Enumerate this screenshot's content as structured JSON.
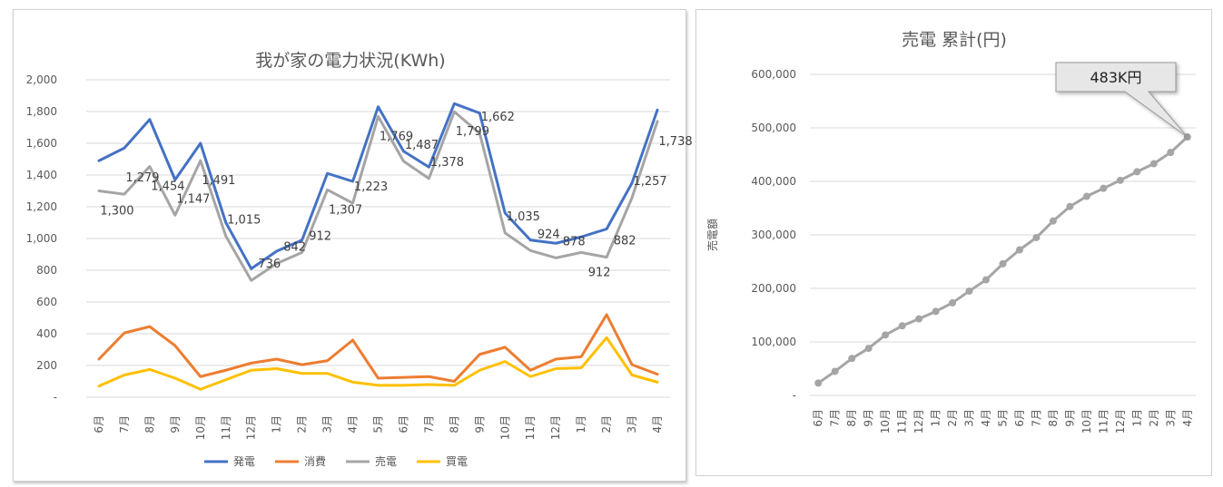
{
  "chart_data": [
    {
      "type": "line",
      "title": "我が家の電力状況(KWh)",
      "categories": [
        "6月",
        "7月",
        "8月",
        "9月",
        "10月",
        "11月",
        "12月",
        "1月",
        "2月",
        "3月",
        "4月",
        "5月",
        "6月",
        "7月",
        "8月",
        "9月",
        "10月",
        "11月",
        "12月",
        "1月",
        "2月",
        "3月",
        "4月"
      ],
      "ylim": [
        0,
        2000
      ],
      "yticks": [
        "-",
        "200",
        "400",
        "600",
        "800",
        "1,000",
        "1,200",
        "1,400",
        "1,600",
        "1,800",
        "2,000"
      ],
      "grid": true,
      "legend_position": "bottom",
      "series": [
        {
          "name": "発電",
          "color": "#4472C4",
          "values": [
            1490,
            1570,
            1750,
            1370,
            1600,
            1100,
            810,
            920,
            990,
            1410,
            1360,
            1830,
            1550,
            1450,
            1850,
            1790,
            1160,
            990,
            970,
            1010,
            1060,
            1350,
            1810
          ]
        },
        {
          "name": "消費",
          "color": "#ED7D31",
          "values": [
            240,
            405,
            445,
            325,
            130,
            170,
            215,
            240,
            205,
            230,
            360,
            120,
            125,
            130,
            100,
            270,
            315,
            170,
            240,
            255,
            520,
            205,
            145
          ]
        },
        {
          "name": "売電",
          "color": "#A5A5A5",
          "values": [
            1300,
            1279,
            1454,
            1147,
            1491,
            1015,
            736,
            842,
            912,
            1307,
            1223,
            1769,
            1487,
            1378,
            1799,
            1662,
            1035,
            924,
            878,
            912,
            882,
            1257,
            1738
          ]
        },
        {
          "name": "買電",
          "color": "#FFC000",
          "values": [
            70,
            140,
            175,
            120,
            50,
            110,
            170,
            180,
            150,
            150,
            95,
            75,
            75,
            80,
            75,
            170,
            225,
            130,
            180,
            185,
            375,
            140,
            95
          ]
        }
      ],
      "data_labels": [
        {
          "text": "1,300",
          "index": 0
        },
        {
          "text": "1,279",
          "index": 1
        },
        {
          "text": "1,454",
          "index": 2
        },
        {
          "text": "1,147",
          "index": 3
        },
        {
          "text": "1,491",
          "index": 4
        },
        {
          "text": "1,015",
          "index": 5
        },
        {
          "text": "736",
          "index": 6
        },
        {
          "text": "842",
          "index": 7
        },
        {
          "text": "912",
          "index": 8
        },
        {
          "text": "1,307",
          "index": 9
        },
        {
          "text": "1,223",
          "index": 10
        },
        {
          "text": "1,769",
          "index": 11
        },
        {
          "text": "1,487",
          "index": 12
        },
        {
          "text": "1,378",
          "index": 13
        },
        {
          "text": "1,799",
          "index": 14
        },
        {
          "text": "1,662",
          "index": 15
        },
        {
          "text": "1,035",
          "index": 16
        },
        {
          "text": "924",
          "index": 17
        },
        {
          "text": "878",
          "index": 18
        },
        {
          "text": "912",
          "index": 19
        },
        {
          "text": "882",
          "index": 20
        },
        {
          "text": "1,257",
          "index": 21
        },
        {
          "text": "1,738",
          "index": 22
        }
      ]
    },
    {
      "type": "line",
      "title": "売電 累計(円)",
      "ylabel": "売電額",
      "categories": [
        "6月",
        "7月",
        "8月",
        "9月",
        "10月",
        "11月",
        "12月",
        "1月",
        "2月",
        "3月",
        "4月",
        "5月",
        "6月",
        "7月",
        "8月",
        "9月",
        "10月",
        "11月",
        "12月",
        "1月",
        "2月",
        "3月",
        "4月"
      ],
      "ylim": [
        0,
        600000
      ],
      "yticks": [
        "-",
        "100,000",
        "200,000",
        "300,000",
        "400,000",
        "500,000",
        "600,000"
      ],
      "grid": true,
      "series": [
        {
          "name": "",
          "color": "#A5A5A5",
          "values": [
            23000,
            45000,
            69000,
            88000,
            113000,
            130000,
            143000,
            157000,
            173000,
            195000,
            216000,
            246000,
            272000,
            295000,
            326000,
            353000,
            372000,
            387000,
            402000,
            418000,
            433000,
            454000,
            483000
          ]
        }
      ],
      "callout": "483K円"
    }
  ]
}
